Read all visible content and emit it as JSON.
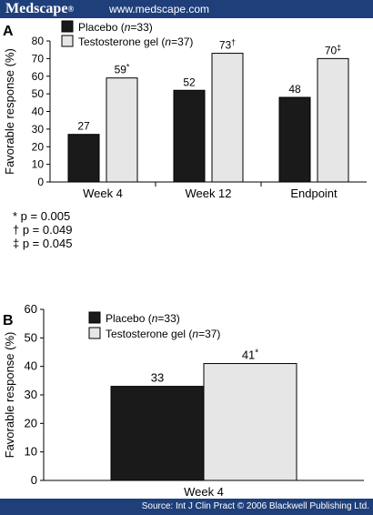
{
  "header": {
    "brand": "Medscape",
    "brand_mark": "®",
    "url": "www.medscape.com"
  },
  "footer": {
    "source": "Source: Int J Clin Pract © 2006 Blackwell Publishing Ltd."
  },
  "colors": {
    "header_bg": "#1f3f7a",
    "placebo": "#1a1a1a",
    "testosterone": "#e6e6e6"
  },
  "chart_data": [
    {
      "panel": "A",
      "type": "bar",
      "ylabel": "Favorable response (%)",
      "ylim": [
        0,
        80
      ],
      "yticks": [
        0,
        10,
        20,
        30,
        40,
        50,
        60,
        70,
        80
      ],
      "categories": [
        "Week 4",
        "Week 12",
        "Endpoint"
      ],
      "series": [
        {
          "name": "Placebo",
          "n_label": "(n=33)",
          "values": [
            27,
            52,
            48
          ],
          "labels": [
            "27",
            "52",
            "48"
          ],
          "marks": [
            "",
            "",
            ""
          ]
        },
        {
          "name": "Testosterone gel",
          "n_label": "(n=37)",
          "values": [
            59,
            73,
            70
          ],
          "labels": [
            "59",
            "73",
            "70"
          ],
          "marks": [
            "*",
            "†",
            "‡"
          ]
        }
      ],
      "legend": "top-left",
      "grid": false,
      "footnotes": [
        "* p = 0.005",
        "† p = 0.049",
        "‡ p = 0.045"
      ]
    },
    {
      "panel": "B",
      "type": "bar",
      "ylabel": "Favorable response (%)",
      "ylim": [
        0,
        60
      ],
      "yticks": [
        0,
        10,
        20,
        30,
        40,
        50,
        60
      ],
      "categories": [
        "Week 4"
      ],
      "series": [
        {
          "name": "Placebo",
          "n_label": "(n=33)",
          "values": [
            33
          ],
          "labels": [
            "33"
          ],
          "marks": [
            ""
          ]
        },
        {
          "name": "Testosterone gel",
          "n_label": "(n=37)",
          "values": [
            41
          ],
          "labels": [
            "41"
          ],
          "marks": [
            "*"
          ]
        }
      ],
      "legend": "top-left",
      "grid": false
    }
  ]
}
